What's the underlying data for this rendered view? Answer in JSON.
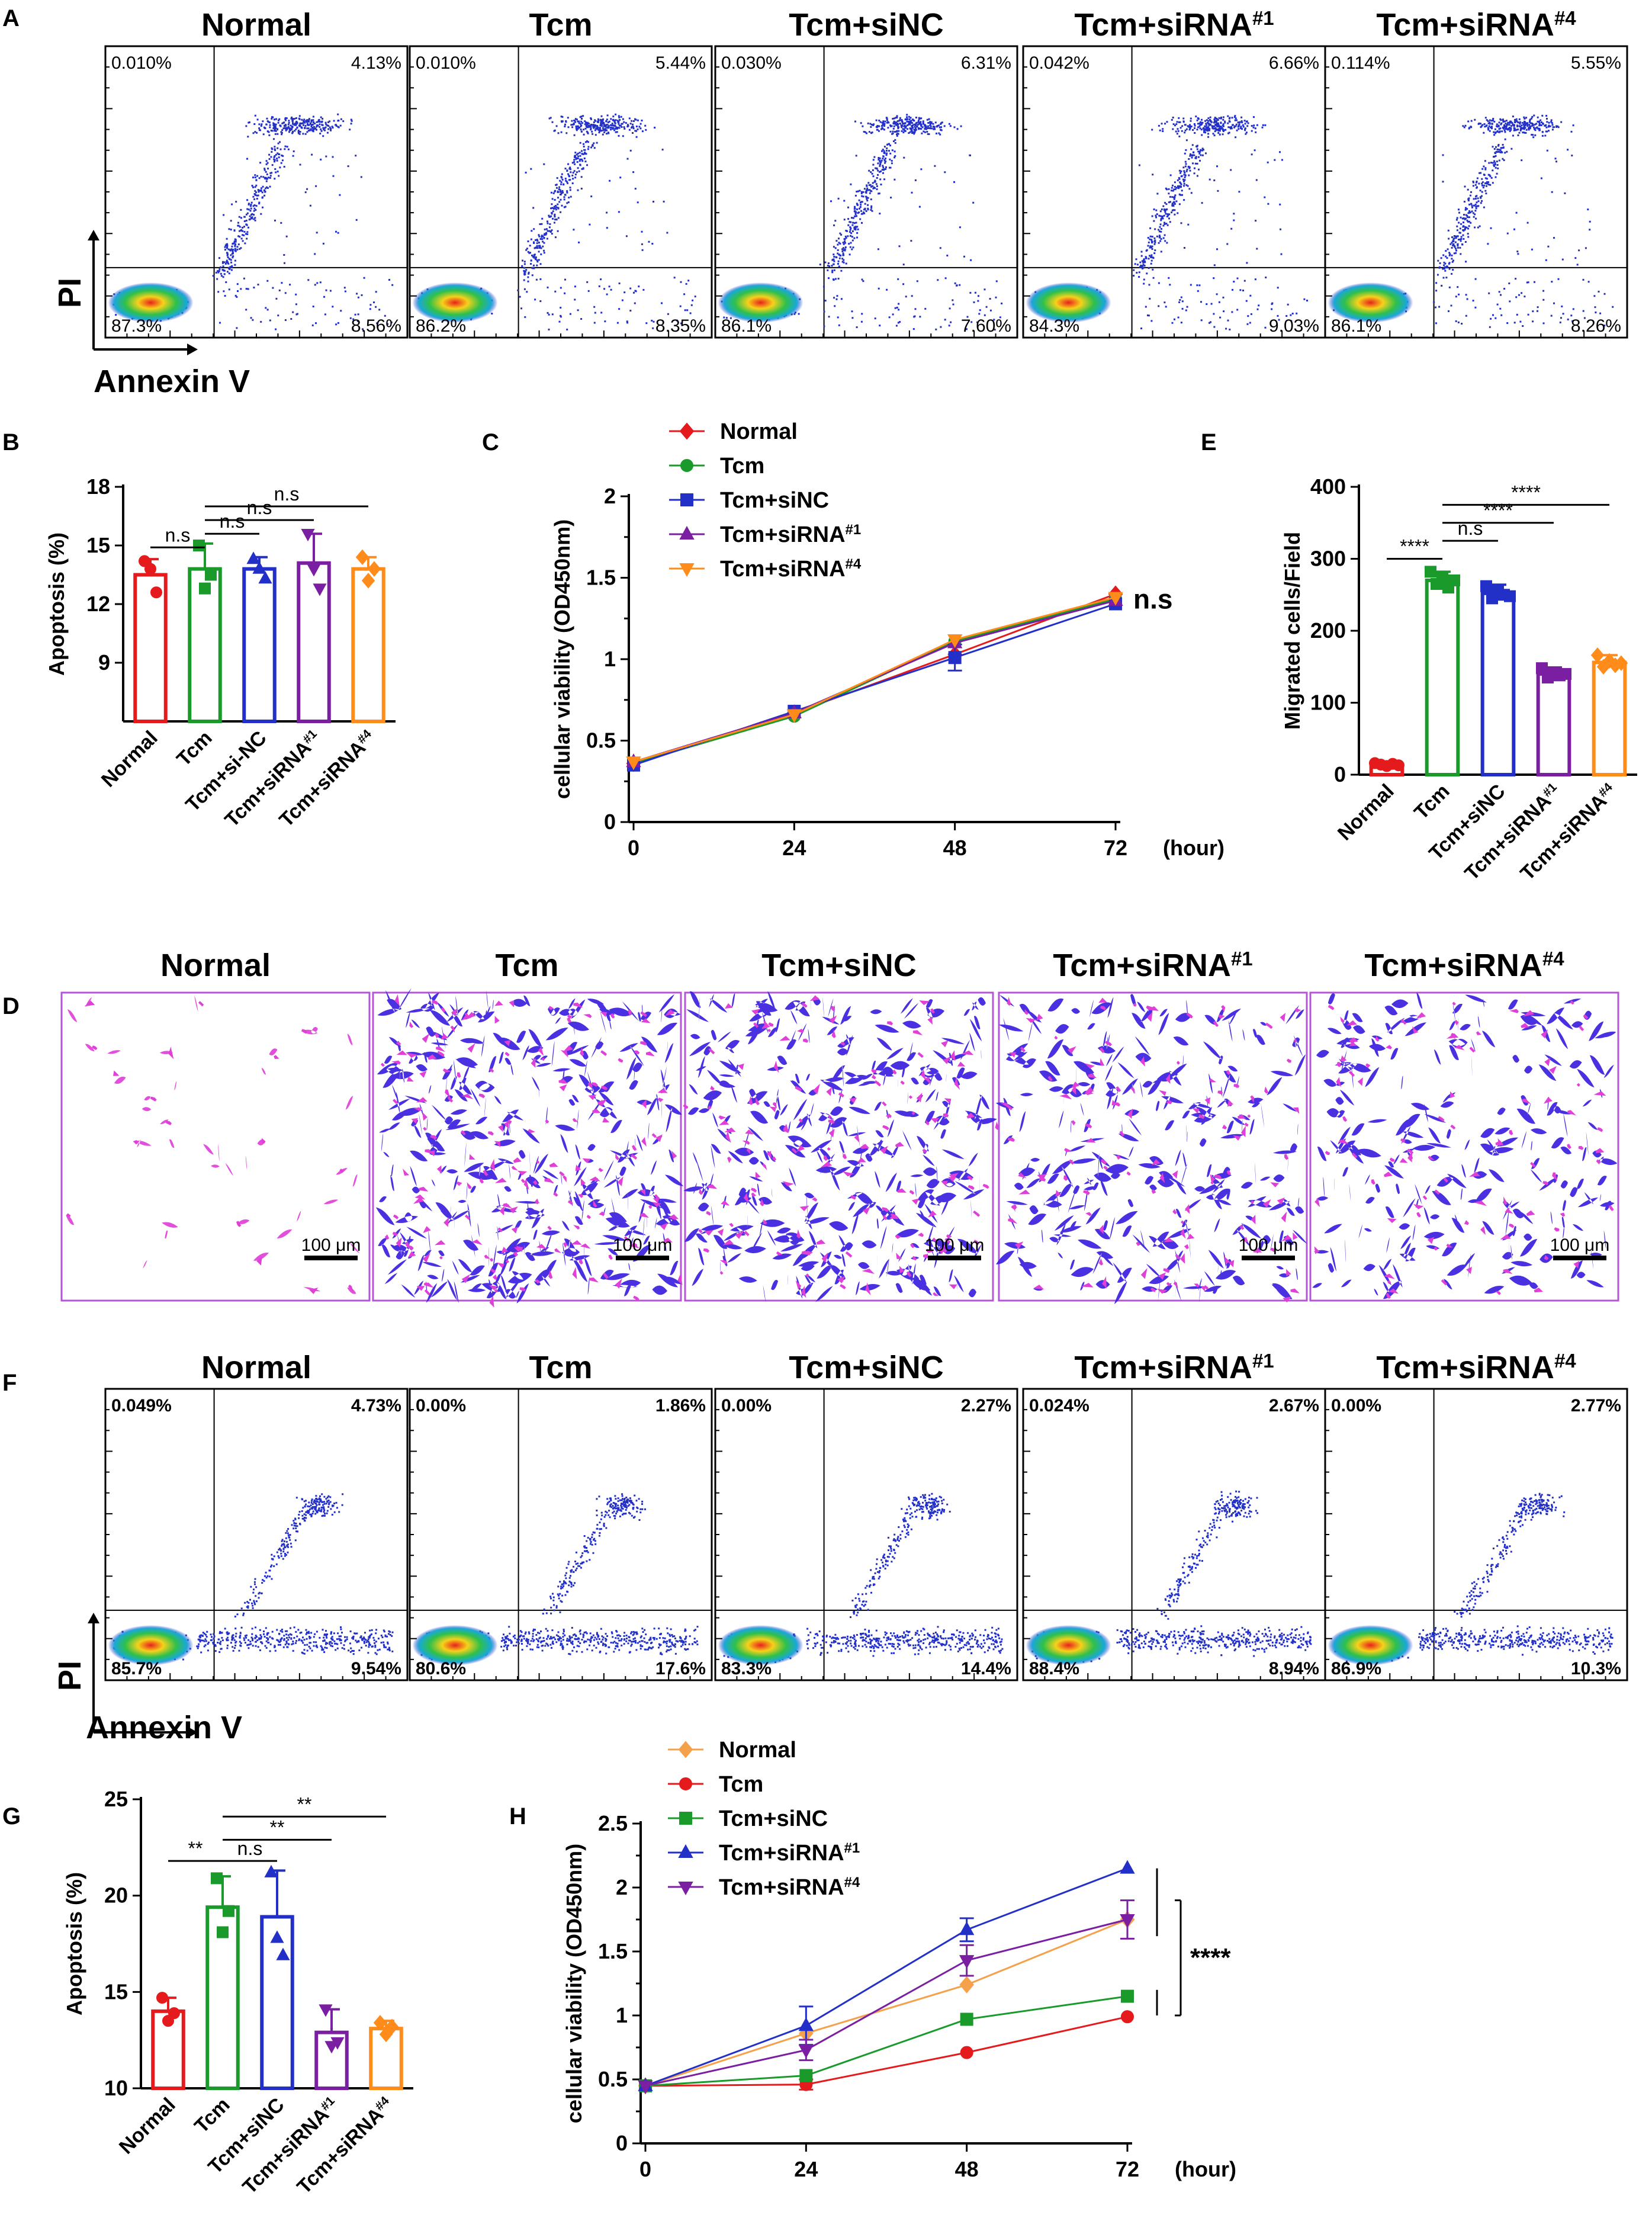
{
  "colors": {
    "normal": "#e41a1c",
    "tcm": "#1a9a2a",
    "sinc": "#2230c8",
    "sirna1": "#7a1fa2",
    "sirna4": "#ff8c1a",
    "normal_h": "#f5a04a",
    "tcm_h": "#e41a1c",
    "sinc_h": "#1a9a2a",
    "sirna1_h": "#2230c8",
    "sirna4_h": "#7a1fa2",
    "cells": "#3a1fe0",
    "cells_pink": "#e040d8",
    "panel_border": "#b455d8"
  },
  "labels": {
    "A": "A",
    "B": "B",
    "C": "C",
    "D": "D",
    "E": "E",
    "F": "F",
    "G": "G",
    "H": "H"
  },
  "flowA": {
    "xlabel": "Annexin V",
    "ylabel": "PI",
    "panels": [
      {
        "title": "Normal",
        "sup": "",
        "ul": "0.010%",
        "ur": "4.13%",
        "ll": "87.3%",
        "lr": "8.56%"
      },
      {
        "title": "Tcm",
        "sup": "",
        "ul": "0.010%",
        "ur": "5.44%",
        "ll": "86.2%",
        "lr": "8.35%"
      },
      {
        "title": "Tcm+siNC",
        "sup": "",
        "ul": "0.030%",
        "ur": "6.31%",
        "ll": "86.1%",
        "lr": "7.60%"
      },
      {
        "title": "Tcm+siRNA",
        "sup": "#1",
        "ul": "0.042%",
        "ur": "6.66%",
        "ll": "84.3%",
        "lr": "9.03%"
      },
      {
        "title": "Tcm+siRNA",
        "sup": "#4",
        "ul": "0.114%",
        "ur": "5.55%",
        "ll": "86.1%",
        "lr": "8.26%"
      }
    ]
  },
  "flowF": {
    "xlabel": "Annexin V",
    "ylabel": "PI",
    "panels": [
      {
        "title": "Normal",
        "sup": "",
        "ul": "0.049%",
        "ur": "4.73%",
        "ll": "85.7%",
        "lr": "9.54%"
      },
      {
        "title": "Tcm",
        "sup": "",
        "ul": "0.00%",
        "ur": "1.86%",
        "ll": "80.6%",
        "lr": "17.6%"
      },
      {
        "title": "Tcm+siNC",
        "sup": "",
        "ul": "0.00%",
        "ur": "2.27%",
        "ll": "83.3%",
        "lr": "14.4%"
      },
      {
        "title": "Tcm+siRNA",
        "sup": "#1",
        "ul": "0.024%",
        "ur": "2.67%",
        "ll": "88.4%",
        "lr": "8.94%"
      },
      {
        "title": "Tcm+siRNA",
        "sup": "#4",
        "ul": "0.00%",
        "ur": "2.77%",
        "ll": "86.9%",
        "lr": "10.3%"
      }
    ]
  },
  "panelD": {
    "scale_label": "100 μm",
    "panels": [
      {
        "title": "Normal",
        "sup": ""
      },
      {
        "title": "Tcm",
        "sup": ""
      },
      {
        "title": "Tcm+siNC",
        "sup": ""
      },
      {
        "title": "Tcm+siRNA",
        "sup": "#1"
      },
      {
        "title": "Tcm+siRNA",
        "sup": "#4"
      }
    ]
  },
  "chart_data": [
    {
      "id": "B",
      "type": "bar",
      "ylabel": "Apoptosis (%)",
      "ylim": [
        6,
        18
      ],
      "yticks": [
        9,
        12,
        15,
        18
      ],
      "categories": [
        {
          "label": "Normal",
          "sup": ""
        },
        {
          "label": "Tcm",
          "sup": ""
        },
        {
          "label": "Tcm+si-NC",
          "sup": ""
        },
        {
          "label": "Tcm+siRNA",
          "sup": "#1"
        },
        {
          "label": "Tcm+siRNA",
          "sup": "#4"
        }
      ],
      "colors": [
        "#e41a1c",
        "#1a9a2a",
        "#2230c8",
        "#7a1fa2",
        "#ff8c1a"
      ],
      "values": [
        13.5,
        13.8,
        13.8,
        14.1,
        13.8
      ],
      "errors": [
        0.8,
        1.3,
        0.6,
        1.5,
        0.6
      ],
      "points": [
        [
          14.2,
          13.8,
          12.6
        ],
        [
          15.0,
          12.8,
          13.5
        ],
        [
          14.3,
          13.8,
          13.3
        ],
        [
          15.6,
          13.8,
          12.8
        ],
        [
          14.4,
          13.2,
          13.8
        ]
      ],
      "markers": [
        "circle",
        "square",
        "triangle",
        "triangle-down",
        "diamond"
      ],
      "sig": [
        {
          "from": 0,
          "to": 1,
          "label": "n.s",
          "y": 14.9
        },
        {
          "from": 1,
          "to": 2,
          "label": "n.s",
          "y": 15.6
        },
        {
          "from": 1,
          "to": 3,
          "label": "n.s",
          "y": 16.3
        },
        {
          "from": 1,
          "to": 4,
          "label": "n.s",
          "y": 17.0
        }
      ]
    },
    {
      "id": "C",
      "type": "line",
      "ylabel": "cellular viability (OD450nm)",
      "xunit": "(hour)",
      "x": [
        0,
        24,
        48,
        72
      ],
      "ylim": [
        0,
        2.0
      ],
      "yticks": [
        0.0,
        0.5,
        1.0,
        1.5,
        2.0
      ],
      "annotation": "n.s",
      "series": [
        {
          "name": "Normal",
          "sup": "",
          "marker": "diamond",
          "color": "#e41a1c",
          "values": [
            0.36,
            0.67,
            1.03,
            1.4
          ],
          "errors": [
            0,
            0,
            0,
            0
          ]
        },
        {
          "name": "Tcm",
          "sup": "",
          "marker": "circle",
          "color": "#1a9a2a",
          "values": [
            0.36,
            0.65,
            1.11,
            1.37
          ],
          "errors": [
            0,
            0,
            0,
            0
          ]
        },
        {
          "name": "Tcm+siNC",
          "sup": "",
          "marker": "square",
          "color": "#2230c8",
          "values": [
            0.35,
            0.68,
            1.01,
            1.34
          ],
          "errors": [
            0,
            0,
            0.08,
            0
          ]
        },
        {
          "name": "Tcm+siRNA",
          "sup": "#1",
          "marker": "triangle",
          "color": "#7a1fa2",
          "values": [
            0.37,
            0.67,
            1.1,
            1.36
          ],
          "errors": [
            0,
            0,
            0,
            0
          ]
        },
        {
          "name": "Tcm+siRNA",
          "sup": "#4",
          "marker": "triangle-down",
          "color": "#ff8c1a",
          "values": [
            0.37,
            0.66,
            1.12,
            1.38
          ],
          "errors": [
            0,
            0,
            0,
            0
          ]
        }
      ]
    },
    {
      "id": "E",
      "type": "bar",
      "ylabel": "Migrated cells/Field",
      "ylim": [
        0,
        400
      ],
      "yticks": [
        0,
        100,
        200,
        300,
        400
      ],
      "categories": [
        {
          "label": "Normal",
          "sup": ""
        },
        {
          "label": "Tcm",
          "sup": ""
        },
        {
          "label": "Tcm+siNC",
          "sup": ""
        },
        {
          "label": "Tcm+siRNA",
          "sup": "#1"
        },
        {
          "label": "Tcm+siRNA",
          "sup": "#4"
        }
      ],
      "colors": [
        "#e41a1c",
        "#1a9a2a",
        "#2230c8",
        "#7a1fa2",
        "#ff8c1a"
      ],
      "values": [
        14,
        270,
        252,
        140,
        156
      ],
      "errors": [
        3,
        12,
        12,
        9,
        10
      ],
      "points": [
        [
          16,
          14,
          12,
          15,
          13
        ],
        [
          282,
          265,
          275,
          260,
          270
        ],
        [
          262,
          245,
          255,
          250,
          248
        ],
        [
          148,
          135,
          142,
          138,
          140
        ],
        [
          166,
          150,
          158,
          152,
          155
        ]
      ],
      "markers": [
        "circle",
        "square",
        "square",
        "square",
        "diamond"
      ],
      "sig": [
        {
          "from": 0,
          "to": 1,
          "label": "****",
          "y": 300
        },
        {
          "from": 1,
          "to": 2,
          "label": "n.s",
          "y": 325
        },
        {
          "from": 1,
          "to": 3,
          "label": "****",
          "y": 350
        },
        {
          "from": 1,
          "to": 4,
          "label": "****",
          "y": 375
        }
      ]
    },
    {
      "id": "G",
      "type": "bar",
      "ylabel": "Apoptosis (%)",
      "ylim": [
        10,
        25
      ],
      "yticks": [
        10,
        15,
        20,
        25
      ],
      "categories": [
        {
          "label": "Normal",
          "sup": ""
        },
        {
          "label": "Tcm",
          "sup": ""
        },
        {
          "label": "Tcm+siNC",
          "sup": ""
        },
        {
          "label": "Tcm+siRNA",
          "sup": "#1"
        },
        {
          "label": "Tcm+siRNA",
          "sup": "#4"
        }
      ],
      "colors": [
        "#e41a1c",
        "#1a9a2a",
        "#2230c8",
        "#7a1fa2",
        "#ff8c1a"
      ],
      "values": [
        14.0,
        19.4,
        18.9,
        12.9,
        13.1
      ],
      "errors": [
        0.7,
        1.6,
        2.4,
        1.2,
        0.4
      ],
      "points": [
        [
          14.7,
          13.5,
          13.9
        ],
        [
          20.9,
          18.1,
          19.2
        ],
        [
          21.2,
          17.8,
          16.9
        ],
        [
          14.1,
          12.2,
          12.4
        ],
        [
          13.4,
          12.8,
          13.2
        ]
      ],
      "markers": [
        "circle",
        "square",
        "triangle",
        "triangle-down",
        "diamond"
      ],
      "sig": [
        {
          "from": 0,
          "to": 1,
          "label": "**",
          "y": 21.8
        },
        {
          "from": 1,
          "to": 2,
          "label": "n.s",
          "y": 21.8
        },
        {
          "from": 1,
          "to": 3,
          "label": "**",
          "y": 22.9
        },
        {
          "from": 1,
          "to": 4,
          "label": "**",
          "y": 24.1
        }
      ]
    },
    {
      "id": "H",
      "type": "line",
      "ylabel": "cellular viability (OD450nm)",
      "xunit": "(hour)",
      "x": [
        0,
        24,
        48,
        72
      ],
      "ylim": [
        0,
        2.5
      ],
      "yticks": [
        0.0,
        0.5,
        1.0,
        1.5,
        2.0,
        2.5
      ],
      "annotation": "****",
      "series": [
        {
          "name": "Normal",
          "sup": "",
          "marker": "diamond",
          "color": "#f5a04a",
          "values": [
            0.45,
            0.86,
            1.24,
            1.75
          ],
          "errors": [
            0,
            0,
            0,
            0
          ]
        },
        {
          "name": "Tcm",
          "sup": "",
          "marker": "circle",
          "color": "#e41a1c",
          "values": [
            0.45,
            0.46,
            0.71,
            0.99
          ],
          "errors": [
            0,
            0.04,
            0,
            0
          ]
        },
        {
          "name": "Tcm+siNC",
          "sup": "",
          "marker": "square",
          "color": "#1a9a2a",
          "values": [
            0.45,
            0.53,
            0.97,
            1.15
          ],
          "errors": [
            0,
            0,
            0,
            0
          ]
        },
        {
          "name": "Tcm+siRNA",
          "sup": "#1",
          "marker": "triangle",
          "color": "#2230c8",
          "values": [
            0.45,
            0.92,
            1.67,
            2.15
          ],
          "errors": [
            0,
            0.15,
            0.09,
            0
          ]
        },
        {
          "name": "Tcm+siRNA",
          "sup": "#4",
          "marker": "triangle-down",
          "color": "#7a1fa2",
          "values": [
            0.45,
            0.73,
            1.43,
            1.75
          ],
          "errors": [
            0,
            0.08,
            0.12,
            0.15
          ]
        }
      ]
    }
  ]
}
